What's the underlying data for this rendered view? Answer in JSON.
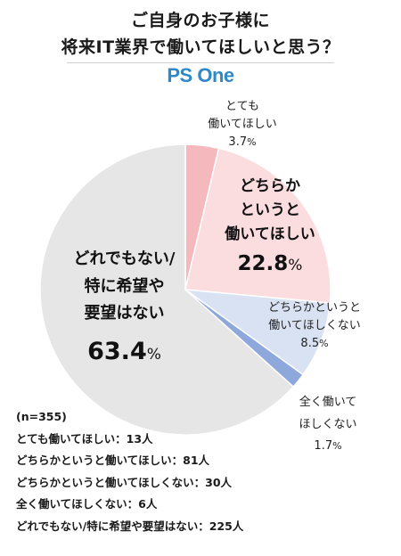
{
  "title": {
    "line1": "ご自身のお子様に",
    "line2": "将来IT業界で働いてほしいと思う？"
  },
  "brand": {
    "text": "PS One",
    "color": "#2f88c8"
  },
  "chart_data": {
    "type": "pie",
    "title": "ご自身のお子様に 将来IT業界で働いてほしいと思う？",
    "n_label": "(n=355)",
    "slices": [
      {
        "label_lines": [
          "とても",
          "働いてほしい"
        ],
        "value": 3.7,
        "count": 13,
        "color": "#f5b8bd"
      },
      {
        "label_lines": [
          "どちらか",
          "というと",
          "働いてほしい"
        ],
        "value": 22.8,
        "count": 81,
        "color": "#fbdde0"
      },
      {
        "label_lines": [
          "どちらかというと",
          "働いてほしくない"
        ],
        "value": 8.5,
        "count": 30,
        "color": "#d9e2f3"
      },
      {
        "label_lines": [
          "全く働いて",
          "ほしくない"
        ],
        "value": 1.7,
        "count": 6,
        "color": "#8fa8db"
      },
      {
        "label_lines": [
          "どれでもない/",
          "特に希望や",
          "要望はない"
        ],
        "value": 63.4,
        "count": 225,
        "color": "#e6e6e6"
      }
    ],
    "percent_sign": "%",
    "count_lines": [
      "とても働いてほしい：13人",
      "どちらかというと働いてほしい：81人",
      "どちらかというと働いてほしくない：30人",
      "全く働いてほしくない：6人",
      "どれでもない/特に希望や要望はない：225人"
    ]
  }
}
